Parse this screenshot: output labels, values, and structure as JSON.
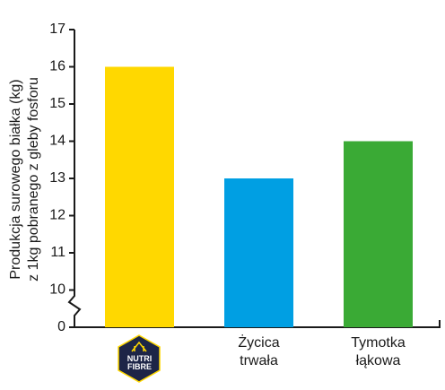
{
  "chart_data": {
    "type": "bar",
    "ylabel": [
      "Produkcja surowego białka (kg)",
      "z 1kg pobranego z gleby fosforu"
    ],
    "categories": [
      "NUTRI FIBRE",
      "Życica trwała",
      "Tymotka łąkowa"
    ],
    "values": [
      16,
      13,
      14
    ],
    "colors": [
      "#ffd800",
      "#009fe3",
      "#3aaa35"
    ],
    "ylim": [
      0,
      17
    ],
    "yticks": [
      0,
      10,
      11,
      12,
      13,
      14,
      15,
      16,
      17
    ],
    "axis_break": [
      0,
      10
    ],
    "grid": false
  }
}
